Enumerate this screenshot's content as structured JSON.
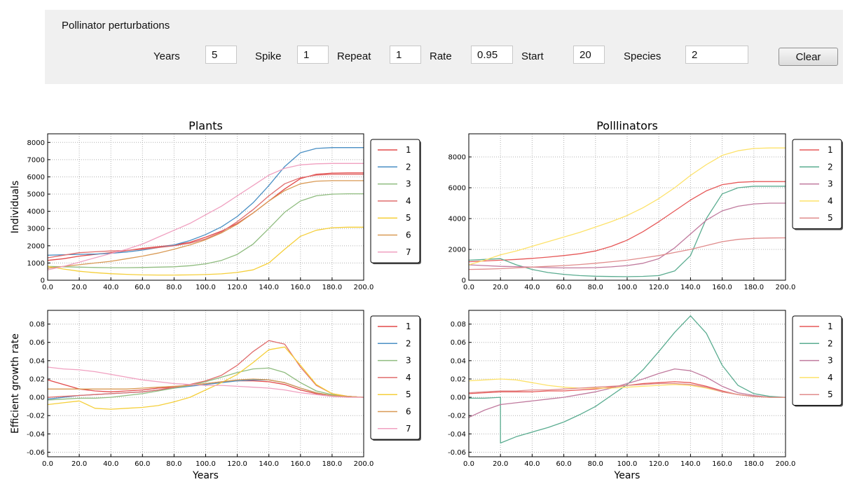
{
  "controls": {
    "title": "Pollinator perturbations",
    "fields": [
      {
        "label": "Years",
        "value": "5"
      },
      {
        "label": "Spike",
        "value": "1"
      },
      {
        "label": "Repeat",
        "value": "1"
      },
      {
        "label": "Rate",
        "value": "0.95"
      },
      {
        "label": "Start",
        "value": "20"
      },
      {
        "label": "Species",
        "value": "2"
      }
    ],
    "clear_label": "Clear"
  },
  "colors": {
    "plants": [
      "#e24a4a",
      "#4a8fc4",
      "#8fbc7f",
      "#e06d6d",
      "#f5cf3a",
      "#d99a55",
      "#f0a0c0"
    ],
    "pollinators": [
      "#e65858",
      "#5aac90",
      "#c07a9e",
      "#fde26a",
      "#e08c8c"
    ]
  },
  "chart_data": [
    {
      "type": "line",
      "title": "Plants",
      "xlabel": "",
      "ylabel": "Individuals",
      "xlim": [
        0,
        200
      ],
      "ylim": [
        0,
        8500
      ],
      "xticks": [
        "0.0",
        "20.0",
        "40.0",
        "60.0",
        "80.0",
        "100.0",
        "120.0",
        "140.0",
        "160.0",
        "180.0",
        "200.0"
      ],
      "yticks": [
        "0",
        "1000",
        "2000",
        "3000",
        "4000",
        "5000",
        "6000",
        "7000",
        "8000"
      ],
      "grid": true,
      "legend": "right",
      "x": [
        0,
        10,
        20,
        30,
        40,
        50,
        60,
        70,
        80,
        90,
        100,
        110,
        120,
        130,
        140,
        150,
        160,
        170,
        180,
        190,
        200
      ],
      "series": [
        {
          "name": "1",
          "values": [
            1150,
            1250,
            1400,
            1500,
            1600,
            1720,
            1850,
            1950,
            2050,
            2200,
            2500,
            2850,
            3300,
            3900,
            4600,
            5300,
            5900,
            6150,
            6220,
            6230,
            6230
          ]
        },
        {
          "name": "2",
          "values": [
            1450,
            1480,
            1500,
            1520,
            1560,
            1640,
            1750,
            1900,
            2050,
            2300,
            2650,
            3100,
            3700,
            4500,
            5500,
            6600,
            7400,
            7650,
            7700,
            7700,
            7700
          ]
        },
        {
          "name": "3",
          "values": [
            800,
            780,
            760,
            740,
            730,
            730,
            740,
            760,
            780,
            840,
            950,
            1150,
            1500,
            2100,
            3000,
            3950,
            4600,
            4900,
            5000,
            5020,
            5020
          ]
        },
        {
          "name": "4",
          "values": [
            1300,
            1450,
            1600,
            1650,
            1700,
            1730,
            1800,
            1900,
            2000,
            2150,
            2400,
            2800,
            3400,
            4100,
            4900,
            5600,
            5950,
            6100,
            6150,
            6150,
            6150
          ]
        },
        {
          "name": "5",
          "values": [
            800,
            650,
            520,
            440,
            380,
            340,
            310,
            300,
            300,
            310,
            330,
            370,
            450,
            600,
            1000,
            1800,
            2550,
            2900,
            3050,
            3080,
            3080
          ]
        },
        {
          "name": "6",
          "values": [
            700,
            800,
            900,
            1000,
            1100,
            1250,
            1400,
            1580,
            1800,
            2050,
            2350,
            2750,
            3250,
            3900,
            4600,
            5200,
            5600,
            5750,
            5780,
            5780,
            5780
          ]
        },
        {
          "name": "7",
          "values": [
            600,
            800,
            1050,
            1300,
            1550,
            1800,
            2100,
            2500,
            2900,
            3300,
            3800,
            4300,
            4900,
            5500,
            6100,
            6500,
            6700,
            6760,
            6780,
            6780,
            6780
          ]
        }
      ]
    },
    {
      "type": "line",
      "title": "Polllinators",
      "xlabel": "",
      "ylabel": "",
      "xlim": [
        0,
        200
      ],
      "ylim": [
        0,
        9500
      ],
      "xticks": [
        "0.0",
        "20.0",
        "40.0",
        "60.0",
        "80.0",
        "100.0",
        "120.0",
        "140.0",
        "160.0",
        "180.0",
        "200.0"
      ],
      "yticks": [
        "0",
        "2000",
        "4000",
        "6000",
        "8000"
      ],
      "grid": true,
      "legend": "right",
      "x": [
        0,
        10,
        20,
        30,
        40,
        50,
        60,
        70,
        80,
        90,
        100,
        110,
        120,
        130,
        140,
        150,
        160,
        170,
        180,
        190,
        200
      ],
      "series": [
        {
          "name": "1",
          "values": [
            1200,
            1250,
            1300,
            1350,
            1420,
            1500,
            1600,
            1720,
            1900,
            2200,
            2600,
            3150,
            3800,
            4500,
            5200,
            5800,
            6200,
            6350,
            6400,
            6400,
            6400
          ]
        },
        {
          "name": "2",
          "values": [
            1300,
            1350,
            1400,
            1000,
            700,
            500,
            380,
            300,
            260,
            240,
            230,
            250,
            300,
            600,
            1600,
            4000,
            5600,
            6000,
            6100,
            6100,
            6100
          ]
        },
        {
          "name": "3",
          "values": [
            1000,
            950,
            900,
            880,
            850,
            820,
            800,
            800,
            820,
            870,
            950,
            1100,
            1400,
            2100,
            3000,
            3900,
            4500,
            4800,
            4950,
            5000,
            5000
          ]
        },
        {
          "name": "4",
          "values": [
            1000,
            1300,
            1650,
            1900,
            2200,
            2500,
            2800,
            3100,
            3450,
            3800,
            4200,
            4700,
            5300,
            6000,
            6800,
            7500,
            8100,
            8400,
            8550,
            8580,
            8580
          ]
        },
        {
          "name": "5",
          "values": [
            700,
            720,
            750,
            800,
            850,
            900,
            950,
            1020,
            1100,
            1200,
            1300,
            1450,
            1600,
            1800,
            2000,
            2250,
            2500,
            2650,
            2720,
            2740,
            2750
          ]
        }
      ]
    },
    {
      "type": "line",
      "title": "",
      "xlabel": "Years",
      "ylabel": "Efficient growth rate",
      "xlim": [
        0,
        200
      ],
      "ylim": [
        -0.065,
        0.095
      ],
      "xticks": [
        "0.0",
        "20.0",
        "40.0",
        "60.0",
        "80.0",
        "100.0",
        "120.0",
        "140.0",
        "160.0",
        "180.0",
        "200.0"
      ],
      "yticks": [
        "-0.06",
        "-0.04",
        "-0.02",
        "0.00",
        "0.02",
        "0.04",
        "0.06",
        "0.08"
      ],
      "grid": true,
      "legend": "right",
      "x": [
        0,
        10,
        20,
        30,
        40,
        50,
        60,
        70,
        80,
        90,
        100,
        110,
        120,
        130,
        140,
        150,
        160,
        170,
        180,
        190,
        200
      ],
      "series": [
        {
          "name": "1",
          "values": [
            0.019,
            0.014,
            0.009,
            0.007,
            0.006,
            0.007,
            0.008,
            0.01,
            0.011,
            0.013,
            0.015,
            0.017,
            0.018,
            0.018,
            0.017,
            0.014,
            0.008,
            0.004,
            0.002,
            0.001,
            0.0
          ]
        },
        {
          "name": "2",
          "values": [
            -0.002,
            0.0,
            0.002,
            0.003,
            0.004,
            0.005,
            0.006,
            0.008,
            0.01,
            0.012,
            0.014,
            0.016,
            0.018,
            0.019,
            0.019,
            0.016,
            0.01,
            0.005,
            0.002,
            0.001,
            0.0
          ]
        },
        {
          "name": "3",
          "values": [
            -0.003,
            -0.002,
            -0.001,
            -0.001,
            0.0,
            0.002,
            0.004,
            0.007,
            0.01,
            0.013,
            0.017,
            0.022,
            0.027,
            0.031,
            0.032,
            0.027,
            0.016,
            0.007,
            0.003,
            0.001,
            0.0
          ]
        },
        {
          "name": "4",
          "values": [
            0.0,
            0.001,
            0.002,
            0.003,
            0.004,
            0.005,
            0.006,
            0.008,
            0.011,
            0.014,
            0.018,
            0.024,
            0.035,
            0.05,
            0.062,
            0.058,
            0.033,
            0.013,
            0.004,
            0.001,
            0.0
          ]
        },
        {
          "name": "5",
          "values": [
            -0.008,
            -0.006,
            -0.004,
            -0.012,
            -0.013,
            -0.012,
            -0.011,
            -0.009,
            -0.005,
            0.0,
            0.008,
            0.016,
            0.025,
            0.038,
            0.052,
            0.055,
            0.035,
            0.014,
            0.004,
            0.001,
            0.0
          ]
        },
        {
          "name": "6",
          "values": [
            0.009,
            0.009,
            0.009,
            0.009,
            0.009,
            0.009,
            0.01,
            0.011,
            0.012,
            0.013,
            0.015,
            0.017,
            0.019,
            0.02,
            0.019,
            0.016,
            0.01,
            0.005,
            0.002,
            0.001,
            0.0
          ]
        },
        {
          "name": "7",
          "values": [
            0.033,
            0.031,
            0.03,
            0.028,
            0.025,
            0.022,
            0.019,
            0.017,
            0.015,
            0.014,
            0.013,
            0.013,
            0.012,
            0.011,
            0.01,
            0.008,
            0.005,
            0.003,
            0.001,
            0.0,
            0.0
          ]
        }
      ]
    },
    {
      "type": "line",
      "title": "",
      "xlabel": "Years",
      "ylabel": "",
      "xlim": [
        0,
        200
      ],
      "ylim": [
        -0.065,
        0.095
      ],
      "xticks": [
        "0.0",
        "20.0",
        "40.0",
        "60.0",
        "80.0",
        "100.0",
        "120.0",
        "140.0",
        "160.0",
        "180.0",
        "200.0"
      ],
      "yticks": [
        "-0.06",
        "-0.04",
        "-0.02",
        "0.00",
        "0.02",
        "0.04",
        "0.06",
        "0.08"
      ],
      "grid": true,
      "legend": "right",
      "x": [
        0,
        10,
        20,
        20.01,
        30,
        40,
        50,
        60,
        70,
        80,
        90,
        100,
        110,
        120,
        130,
        140,
        150,
        160,
        170,
        180,
        190,
        200
      ],
      "series": [
        {
          "name": "1",
          "values": [
            0.004,
            0.005,
            0.006,
            0.006,
            0.006,
            0.006,
            0.007,
            0.007,
            0.008,
            0.009,
            0.011,
            0.013,
            0.015,
            0.016,
            0.017,
            0.016,
            0.012,
            0.007,
            0.003,
            0.001,
            0.0,
            0.0
          ]
        },
        {
          "name": "2",
          "values": [
            -0.001,
            -0.001,
            0.0,
            -0.05,
            -0.043,
            -0.038,
            -0.033,
            -0.027,
            -0.019,
            -0.01,
            0.002,
            0.014,
            0.03,
            0.05,
            0.071,
            0.089,
            0.07,
            0.035,
            0.013,
            0.004,
            0.001,
            0.0
          ]
        },
        {
          "name": "3",
          "values": [
            -0.022,
            -0.014,
            -0.008,
            -0.008,
            -0.006,
            -0.004,
            -0.002,
            0.0,
            0.003,
            0.006,
            0.01,
            0.015,
            0.02,
            0.026,
            0.031,
            0.029,
            0.022,
            0.012,
            0.005,
            0.002,
            0.0,
            0.0
          ]
        },
        {
          "name": "4",
          "values": [
            0.018,
            0.019,
            0.02,
            0.02,
            0.019,
            0.016,
            0.013,
            0.011,
            0.01,
            0.01,
            0.01,
            0.011,
            0.012,
            0.013,
            0.014,
            0.013,
            0.01,
            0.006,
            0.003,
            0.001,
            0.0,
            0.0
          ]
        },
        {
          "name": "5",
          "values": [
            0.005,
            0.006,
            0.007,
            0.007,
            0.007,
            0.008,
            0.008,
            0.009,
            0.01,
            0.011,
            0.012,
            0.013,
            0.014,
            0.015,
            0.015,
            0.014,
            0.011,
            0.006,
            0.003,
            0.001,
            0.0,
            0.0
          ]
        }
      ]
    }
  ]
}
